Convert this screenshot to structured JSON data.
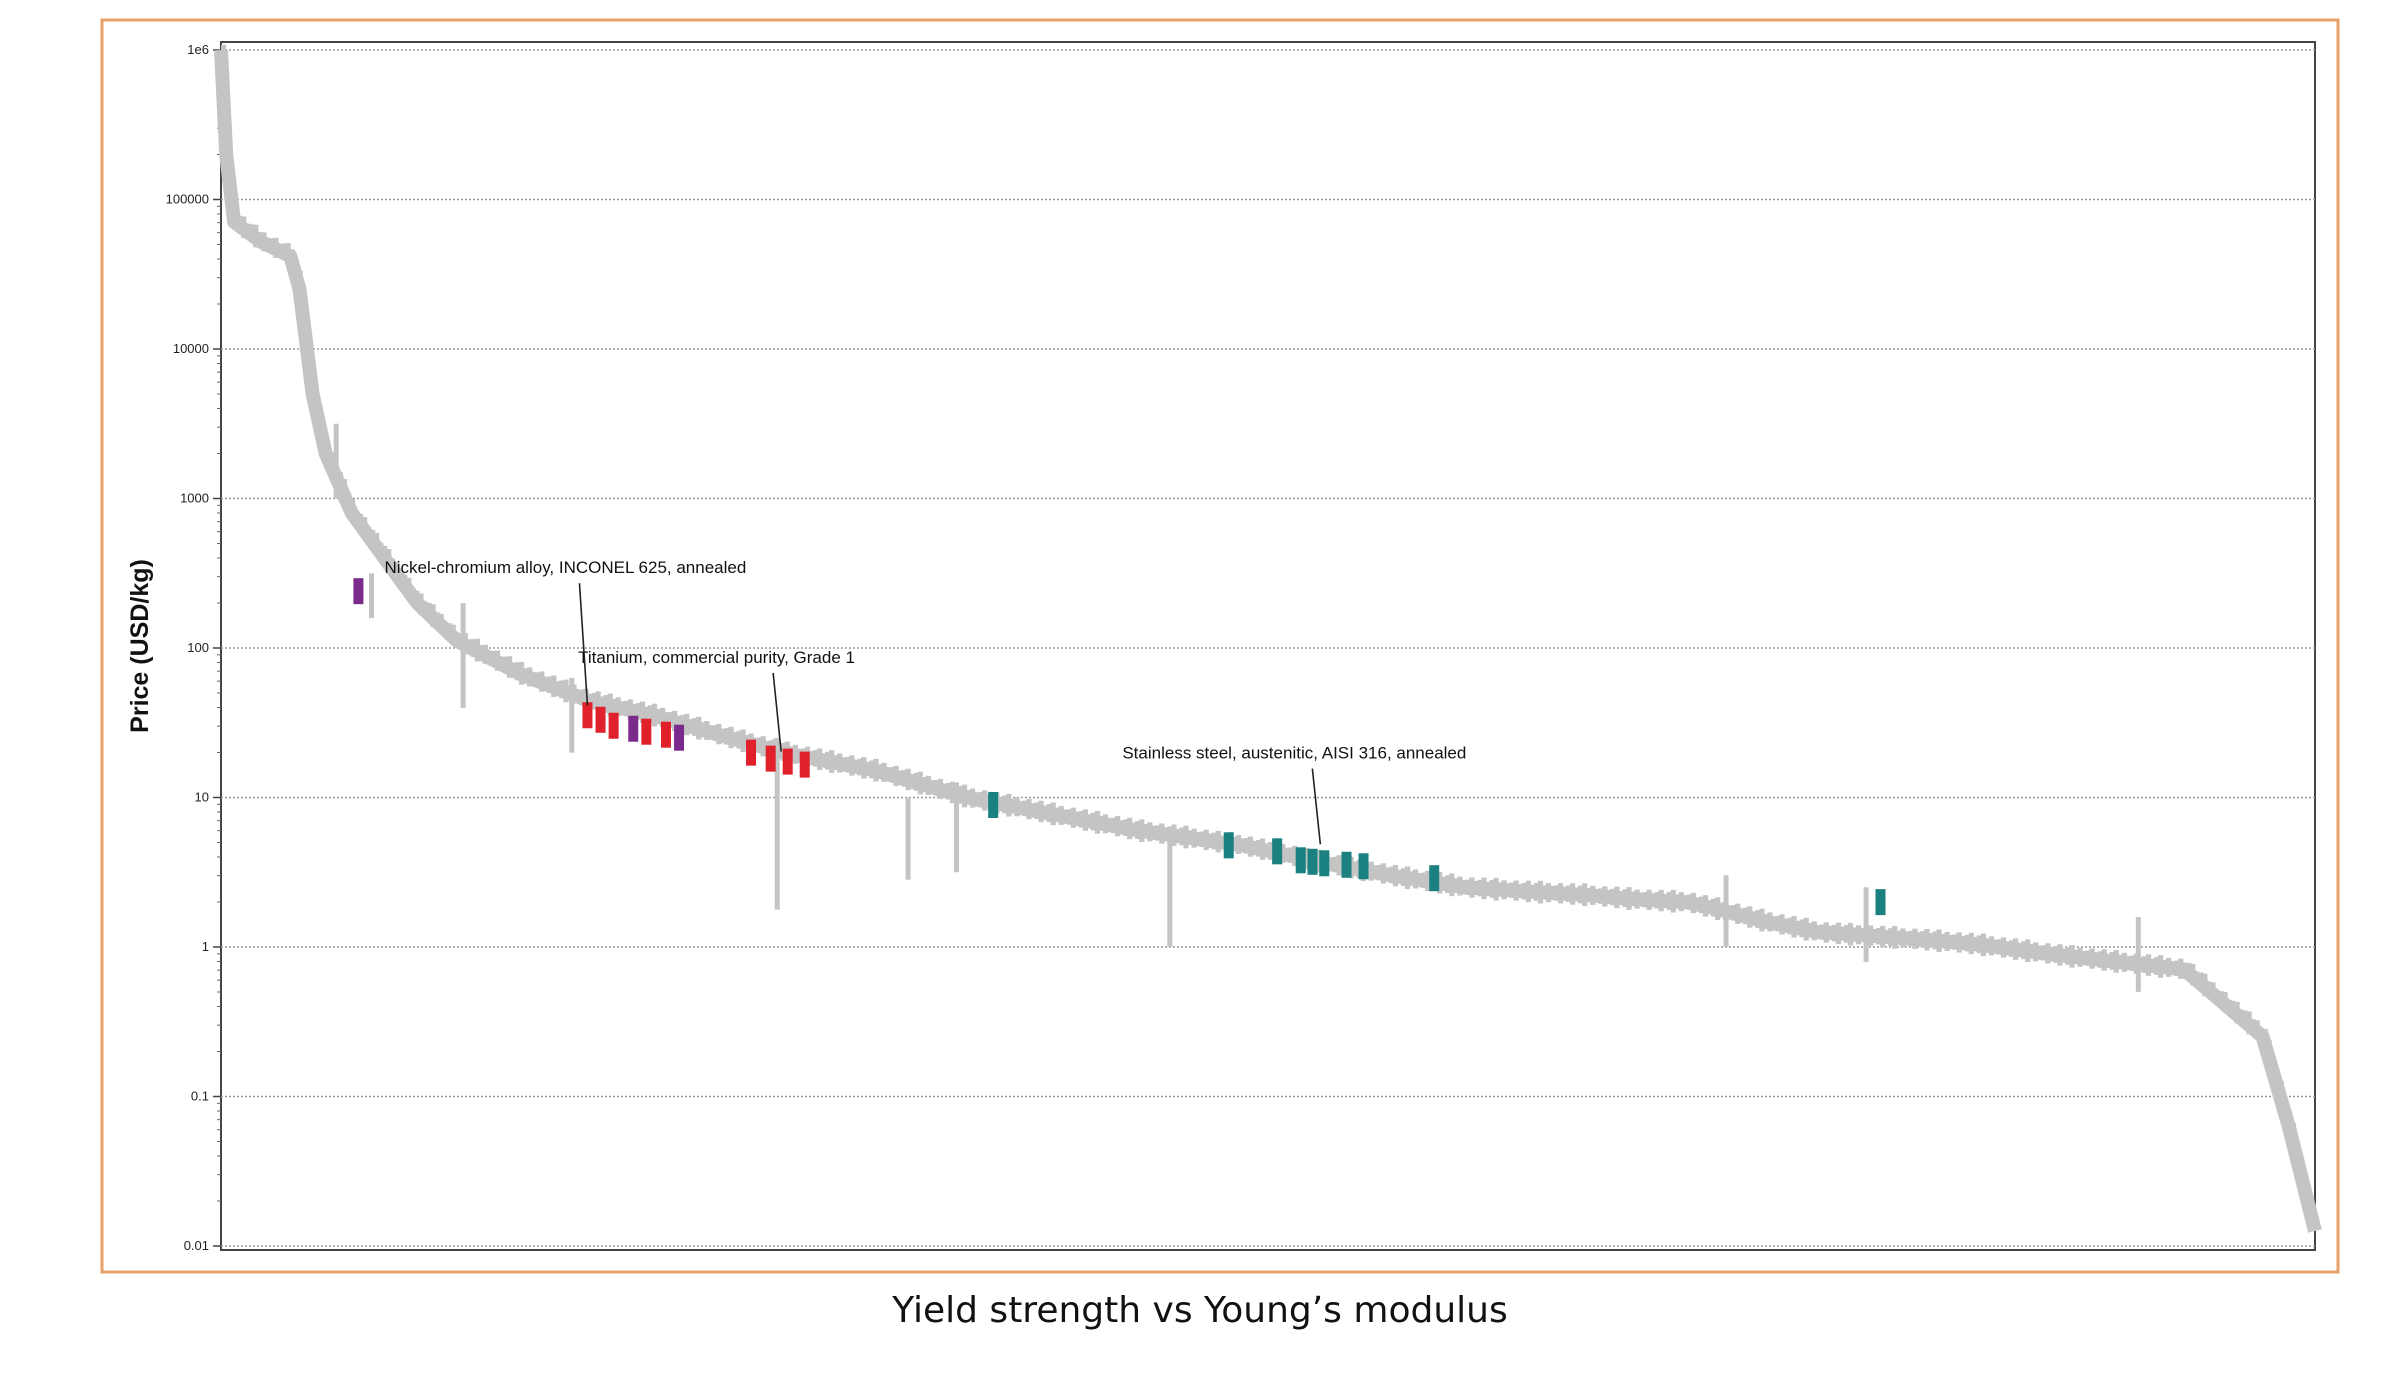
{
  "caption": "Yield strength vs Young’s modulus",
  "colors": {
    "frame": "#e8a066",
    "bar": "#c4c4c4",
    "grid": "#9a9a9a",
    "highlight_red": "#e0202a",
    "highlight_purple": "#7a2a8a",
    "highlight_teal": "#1a8080"
  },
  "chart_data": {
    "type": "bar",
    "title": "",
    "xlabel": "",
    "ylabel": "Price (USD/kg)",
    "yscale": "log",
    "ylim": [
      0.01,
      1000000
    ],
    "yticks": [
      {
        "value": 1000000,
        "label": "1e6"
      },
      {
        "value": 100000,
        "label": "100000"
      },
      {
        "value": 10000,
        "label": "10000"
      },
      {
        "value": 1000,
        "label": "1000"
      },
      {
        "value": 100,
        "label": "100"
      },
      {
        "value": 10,
        "label": "10"
      },
      {
        "value": 1,
        "label": "1"
      },
      {
        "value": 0.1,
        "label": "0.1"
      },
      {
        "value": 0.01,
        "label": "0.01"
      }
    ],
    "grid": true,
    "sorted_curve_rank_vs_log_price": [
      [
        0,
        6.0
      ],
      [
        0.4,
        5.3
      ],
      [
        1,
        4.85
      ],
      [
        3,
        4.72
      ],
      [
        5.3,
        4.62
      ],
      [
        6,
        4.4
      ],
      [
        7,
        3.7
      ],
      [
        8,
        3.3
      ],
      [
        10,
        2.9
      ],
      [
        12.5,
        2.6
      ],
      [
        15,
        2.3
      ],
      [
        18,
        2.05
      ],
      [
        23,
        1.82
      ],
      [
        28,
        1.65
      ],
      [
        33,
        1.55
      ],
      [
        38,
        1.42
      ],
      [
        43,
        1.3
      ],
      [
        50,
        1.18
      ],
      [
        57,
        1.0
      ],
      [
        64,
        0.88
      ],
      [
        70,
        0.78
      ],
      [
        78,
        0.68
      ],
      [
        85,
        0.55
      ],
      [
        90,
        0.47
      ],
      [
        95,
        0.4
      ],
      [
        100,
        0.37
      ],
      [
        104,
        0.35
      ],
      [
        108,
        0.32
      ],
      [
        112,
        0.3
      ],
      [
        114,
        0.26
      ],
      [
        118,
        0.17
      ],
      [
        122,
        0.1
      ],
      [
        130,
        0.05
      ],
      [
        134,
        0.02
      ],
      [
        140,
        -0.05
      ],
      [
        150,
        -0.15
      ],
      [
        154,
        -0.45
      ],
      [
        156,
        -0.6
      ],
      [
        158,
        -1.2
      ],
      [
        160,
        -1.9
      ]
    ],
    "spikes": [
      {
        "rank": 8.8,
        "low": 3.0,
        "high": 3.5
      },
      {
        "rank": 11.5,
        "low": 2.2,
        "high": 2.5
      },
      {
        "rank": 18.5,
        "low": 1.6,
        "high": 2.3
      },
      {
        "rank": 26.8,
        "low": 1.3,
        "high": 1.8
      },
      {
        "rank": 42.5,
        "low": 0.25,
        "high": 1.4
      },
      {
        "rank": 52.5,
        "low": 0.45,
        "high": 1.0
      },
      {
        "rank": 56.2,
        "low": 0.5,
        "high": 1.1
      },
      {
        "rank": 72.5,
        "low": 0.0,
        "high": 0.8
      },
      {
        "rank": 115,
        "low": 0.0,
        "high": 0.48
      },
      {
        "rank": 125.7,
        "low": -0.1,
        "high": 0.4
      },
      {
        "rank": 146.5,
        "low": -0.3,
        "high": 0.2
      }
    ],
    "highlights": [
      {
        "rank": 10.5,
        "logp": 2.38,
        "color": "purple"
      },
      {
        "rank": 28,
        "logp": 1.55,
        "color": "red"
      },
      {
        "rank": 29,
        "logp": 1.52,
        "color": "red"
      },
      {
        "rank": 30,
        "logp": 1.48,
        "color": "red"
      },
      {
        "rank": 31.5,
        "logp": 1.46,
        "color": "purple"
      },
      {
        "rank": 32.5,
        "logp": 1.44,
        "color": "red"
      },
      {
        "rank": 34,
        "logp": 1.42,
        "color": "red"
      },
      {
        "rank": 35,
        "logp": 1.4,
        "color": "purple"
      },
      {
        "rank": 40.5,
        "logp": 1.3,
        "color": "red"
      },
      {
        "rank": 42,
        "logp": 1.26,
        "color": "red"
      },
      {
        "rank": 43.3,
        "logp": 1.24,
        "color": "red"
      },
      {
        "rank": 44.6,
        "logp": 1.22,
        "color": "red"
      },
      {
        "rank": 59,
        "logp": 0.95,
        "color": "teal"
      },
      {
        "rank": 77,
        "logp": 0.68,
        "color": "teal"
      },
      {
        "rank": 80.7,
        "logp": 0.64,
        "color": "teal"
      },
      {
        "rank": 82.5,
        "logp": 0.58,
        "color": "teal"
      },
      {
        "rank": 83.4,
        "logp": 0.57,
        "color": "teal"
      },
      {
        "rank": 84.3,
        "logp": 0.56,
        "color": "teal"
      },
      {
        "rank": 86,
        "logp": 0.55,
        "color": "teal"
      },
      {
        "rank": 87.3,
        "logp": 0.54,
        "color": "teal"
      },
      {
        "rank": 92.7,
        "logp": 0.46,
        "color": "teal"
      },
      {
        "rank": 126.8,
        "logp": 0.3,
        "color": "teal"
      }
    ],
    "annotations": [
      {
        "text": "Nickel-chromium alloy, INCONEL 625, annealed",
        "rank": 28,
        "logp": 1.55,
        "label_logp": 2.42
      },
      {
        "text": "Titanium, commercial purity, Grade 1",
        "rank": 42.8,
        "logp": 1.24,
        "label_logp": 1.82
      },
      {
        "text": "Stainless steel, austenitic, AISI 316, annealed",
        "rank": 84,
        "logp": 0.62,
        "label_logp": 1.18
      }
    ]
  }
}
